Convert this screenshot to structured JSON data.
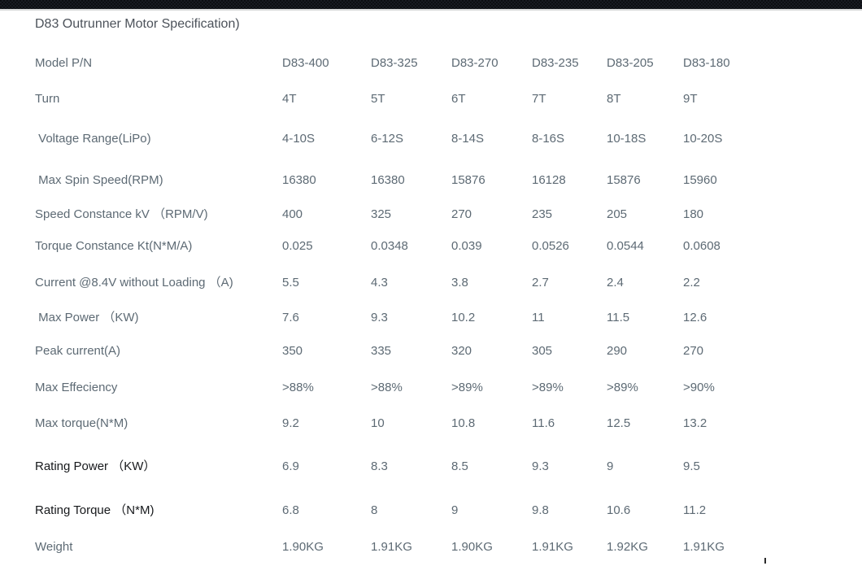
{
  "page": {
    "title": "D83 Outrunner Motor Specification)"
  },
  "table": {
    "rows": [
      {
        "label": "Model P/N",
        "values": [
          "D83-400",
          "D83-325",
          "D83-270",
          "D83-235",
          "D83-205",
          "D83-180"
        ]
      },
      {
        "label": "Turn",
        "values": [
          "4T",
          "5T",
          "6T",
          "7T",
          "8T",
          "9T"
        ]
      },
      {
        "label": " Voltage Range(LiPo)",
        "values": [
          "4-10S",
          "6-12S",
          "8-14S",
          "8-16S",
          "10-18S",
          "10-20S"
        ]
      },
      {
        "label": " Max Spin Speed(RPM)",
        "values": [
          "16380",
          "16380",
          "15876",
          "16128",
          "15876",
          "15960"
        ]
      },
      {
        "label": "Speed Constance kV （RPM/V)",
        "values": [
          "400",
          "325",
          "270",
          "235",
          "205",
          "180"
        ]
      },
      {
        "label": "Torque Constance Kt(N*M/A)",
        "values": [
          "0.025",
          "0.0348",
          "0.039",
          "0.0526",
          "0.0544",
          "0.0608"
        ]
      },
      {
        "label": "Current @8.4V without Loading （A)",
        "values": [
          "5.5",
          "4.3",
          "3.8",
          "2.7",
          "2.4",
          "2.2"
        ]
      },
      {
        "label": " Max Power （KW)",
        "values": [
          "7.6",
          "9.3",
          "10.2",
          "11",
          "11.5",
          "12.6"
        ]
      },
      {
        "label": "Peak current(A)",
        "values": [
          "350",
          "335",
          "320",
          "305",
          "290",
          "270"
        ]
      },
      {
        "label": "Max Effeciency",
        "values": [
          ">88%",
          ">88%",
          ">89%",
          ">89%",
          ">89%",
          ">90%"
        ]
      },
      {
        "label": "Max torque(N*M)",
        "values": [
          "9.2",
          "10",
          "10.8",
          "11.6",
          "12.5",
          "13.2"
        ]
      },
      {
        "label": "Rating Power （KW）",
        "values": [
          "6.9",
          "8.3",
          "8.5",
          "9.3",
          "9",
          "9.5"
        ]
      },
      {
        "label": "Rating Torque （N*M)",
        "values": [
          "6.8",
          "8",
          "9",
          "9.8",
          "10.6",
          "11.2"
        ]
      },
      {
        "label": "Weight",
        "values": [
          "1.90KG",
          "1.91KG",
          "1.90KG",
          "1.91KG",
          "1.92KG",
          "1.91KG"
        ]
      }
    ]
  },
  "colors": {
    "body_text": "#5d6a74",
    "emphasis_text": "#17191c",
    "title_text": "#4c525a",
    "band_dark": "#0c0e12",
    "band_light": "#181b22",
    "band_separator": "#d6d7d8",
    "background": "#ffffff"
  }
}
